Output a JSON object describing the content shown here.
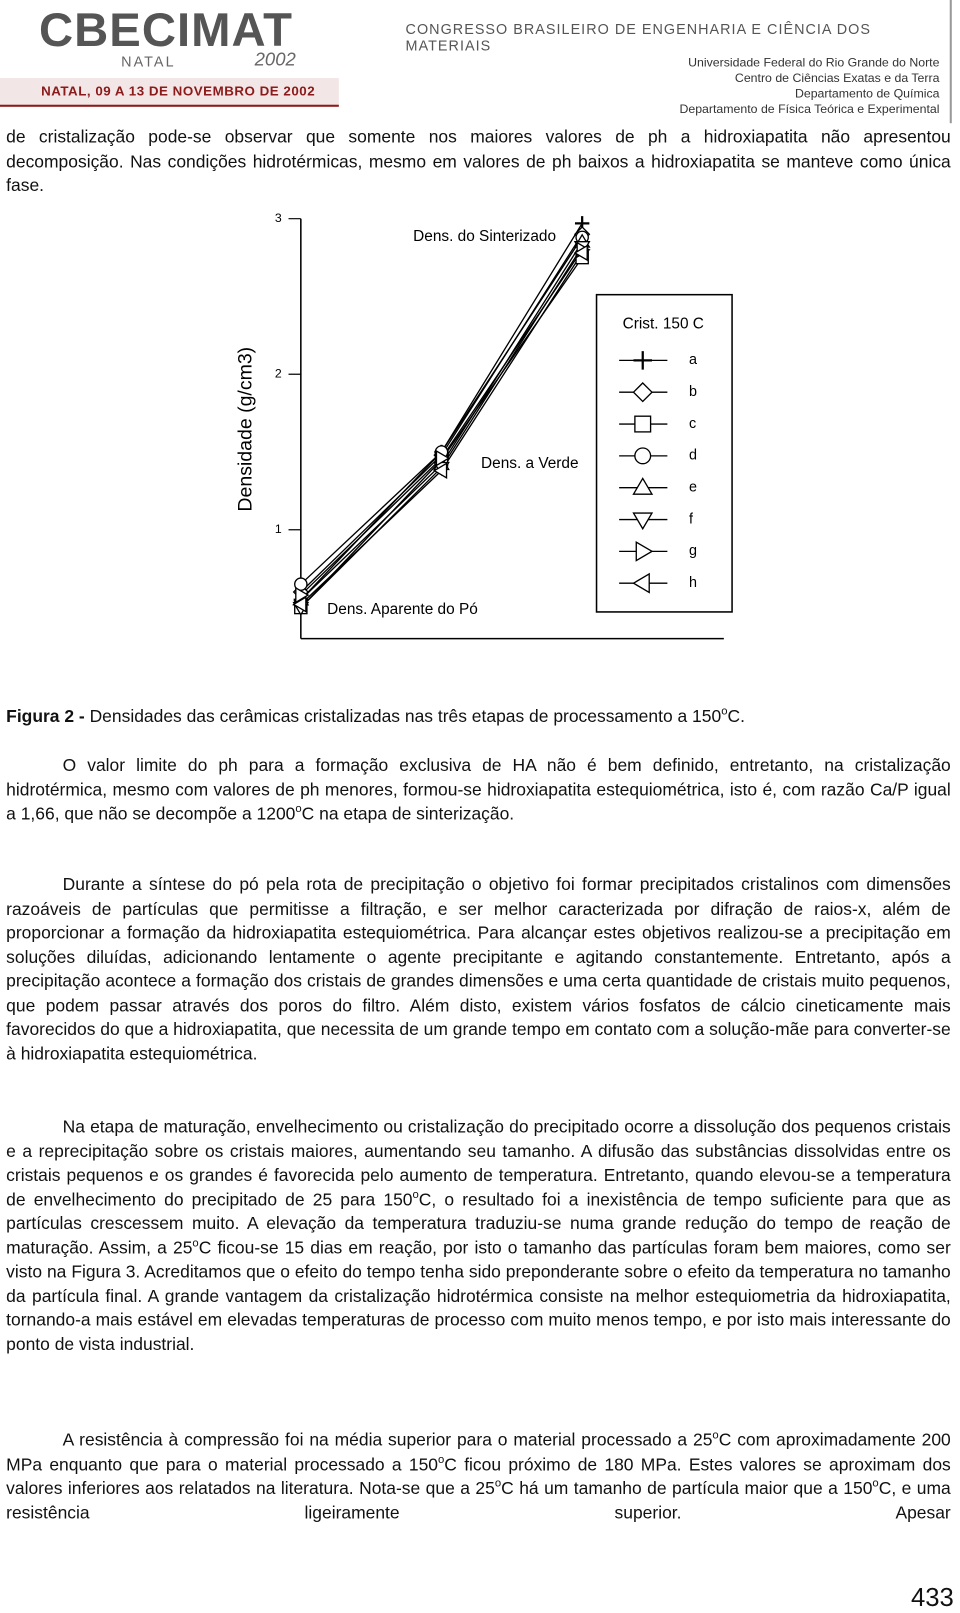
{
  "header": {
    "logo": "CBECIMAT",
    "logo_city": "NATAL",
    "logo_year": "2002",
    "dates": "NATAL, 09 A 13 DE NOVEMBRO DE 2002",
    "congress": "CONGRESSO BRASILEIRO DE ENGENHARIA E CIÊNCIA DOS MATERIAIS",
    "institution": [
      "Universidade Federal do Rio Grande do Norte",
      "Centro de Ciências Exatas e da Terra",
      "Departamento de Química",
      "Departamento de Física Teórica e Experimental"
    ]
  },
  "paragraphs": [
    [
      "de cristalização pode-se observar que somente nos maiores valores de ph a hidroxiapatita não apresentou decomposição. Nas condições hidrotérmicas, mesmo em valores de ph baixos a hidroxiapatita se manteve como única fase."
    ],
    [
      "O valor limite do ph para a formação exclusiva de HA não é bem definido, entretanto, na cristalização hidrotérmica, mesmo com valores de ph menores, formou-se hidroxiapatita estequiométrica, isto é, com razão Ca/P igual a 1,66, que não se decompõe a 1200",
      "o",
      "C na etapa de sinterização."
    ],
    [
      "Durante a síntese do pó pela rota de precipitação o objetivo foi formar precipitados cristalinos com dimensões razoáveis de partículas que permitisse a filtração, e ser melhor caracterizada por difração de raios-x, além de proporcionar a formação da hidroxiapatita estequiométrica. Para alcançar estes objetivos realizou-se a precipitação em soluções diluídas, adicionando lentamente o agente precipitante e agitando constantemente. Entretanto, após a precipitação acontece a formação dos cristais de grandes dimensões e uma certa quantidade de cristais muito pequenos, que podem passar através dos poros do filtro. Além disto, existem vários fosfatos de cálcio cineticamente mais favorecidos do que a hidroxiapatita, que necessita de um grande tempo em contato com a solução-mãe para converter-se à hidroxiapatita estequiométrica."
    ],
    [
      "Na etapa de maturação, envelhecimento ou cristalização do precipitado ocorre a dissolução dos pequenos cristais e a reprecipitação sobre os cristais maiores, aumentando seu tamanho. A difusão das substâncias dissolvidas entre os cristais pequenos e os grandes é favorecida pelo aumento de temperatura. Entretanto, quando elevou-se a temperatura de envelhecimento do precipitado de 25 para 150",
      "o",
      "C, o resultado foi a inexistência de tempo suficiente para que as partículas crescessem muito. A elevação da temperatura traduziu-se numa grande redução do tempo de reação de maturação. Assim, a 25",
      "o",
      "C ficou-se 15 dias em reação, por isto o tamanho das partículas foram bem maiores, como ser visto na Figura 3. Acreditamos que o efeito do tempo tenha sido preponderante sobre o efeito da temperatura no tamanho da partícula final. A grande vantagem da cristalização hidrotérmica consiste na melhor estequiometria da hidroxiapatita, tornando-a mais estável em elevadas temperaturas de processo com muito menos tempo, e por isto mais interessante do ponto de vista industrial."
    ],
    [
      "A resistência à compressão foi na média superior para o material processado a 25",
      "o",
      "C com aproximadamente 200 MPa enquanto que para o material processado a 150",
      "o",
      "C ficou próximo de 180 MPa. Estes valores se aproximam dos valores inferiores aos relatados na literatura. Nota-se que a 25",
      "o",
      "C há um tamanho de partícula maior que a 150",
      "o",
      "C, e uma resistência ligeiramente superior. Apesar"
    ]
  ],
  "caption": {
    "label": "Figura 2 -",
    "text": [
      " Densidades das cerâmicas cristalizadas nas três etapas de processamento a 150",
      "o",
      "C."
    ]
  },
  "chart_data": {
    "type": "line",
    "ylabel": "Densidade (g/cm3)",
    "categories": [
      null,
      null,
      null
    ],
    "annotations": [
      "Dens. Aparente do Pó",
      "Dens. a Verde",
      "Dens. do Sinterizado"
    ],
    "ylim": [
      0.3,
      3
    ],
    "yticks": [
      1,
      2,
      3
    ],
    "legend_title": "Crist. 150 C",
    "legend": "right",
    "series": [
      {
        "name": "a",
        "color": "#000000",
        "marker": "plus",
        "values": [
          0.55,
          1.5,
          2.97
        ]
      },
      {
        "name": "b",
        "color": "#000000",
        "marker": "diamond",
        "values": [
          0.6,
          1.48,
          2.9
        ]
      },
      {
        "name": "c",
        "color": "#000000",
        "marker": "square",
        "values": [
          0.5,
          1.45,
          2.75
        ]
      },
      {
        "name": "d",
        "color": "#000000",
        "marker": "circle",
        "values": [
          0.65,
          1.5,
          2.88
        ]
      },
      {
        "name": "e",
        "color": "#000000",
        "marker": "triangle-up",
        "values": [
          0.55,
          1.42,
          2.85
        ]
      },
      {
        "name": "f",
        "color": "#000000",
        "marker": "triangle-down",
        "values": [
          0.5,
          1.4,
          2.82
        ]
      },
      {
        "name": "g",
        "color": "#000000",
        "marker": "triangle-right",
        "values": [
          0.58,
          1.46,
          2.8
        ]
      },
      {
        "name": "h",
        "color": "#000000",
        "marker": "triangle-left",
        "values": [
          0.52,
          1.38,
          2.78
        ]
      }
    ]
  },
  "page_number": "433"
}
